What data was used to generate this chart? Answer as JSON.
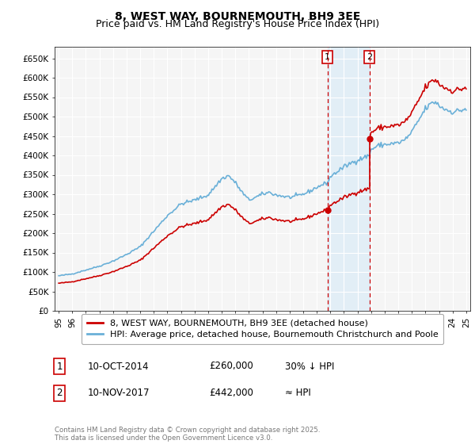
{
  "title": "8, WEST WAY, BOURNEMOUTH, BH9 3EE",
  "subtitle": "Price paid vs. HM Land Registry's House Price Index (HPI)",
  "ylim": [
    0,
    680000
  ],
  "yticks": [
    0,
    50000,
    100000,
    150000,
    200000,
    250000,
    300000,
    350000,
    400000,
    450000,
    500000,
    550000,
    600000,
    650000
  ],
  "ytick_labels": [
    "£0",
    "£50K",
    "£100K",
    "£150K",
    "£200K",
    "£250K",
    "£300K",
    "£350K",
    "£400K",
    "£450K",
    "£500K",
    "£550K",
    "£600K",
    "£650K"
  ],
  "hpi_color": "#6ab0d8",
  "price_color": "#cc0000",
  "vline_color": "#cc0000",
  "shade_color": "#d6eaf8",
  "sale1_date_num": 2014.79,
  "sale1_price": 260000,
  "sale1_label": "1",
  "sale2_date_num": 2017.87,
  "sale2_price": 442000,
  "sale2_label": "2",
  "legend_line1": "8, WEST WAY, BOURNEMOUTH, BH9 3EE (detached house)",
  "legend_line2": "HPI: Average price, detached house, Bournemouth Christchurch and Poole",
  "table_row1": [
    "1",
    "10-OCT-2014",
    "£260,000",
    "30% ↓ HPI"
  ],
  "table_row2": [
    "2",
    "10-NOV-2017",
    "£442,000",
    "≈ HPI"
  ],
  "footer": "Contains HM Land Registry data © Crown copyright and database right 2025.\nThis data is licensed under the Open Government Licence v3.0.",
  "bg_color": "#ffffff",
  "plot_bg_color": "#f5f5f5",
  "grid_color": "#ffffff",
  "title_fontsize": 10,
  "subtitle_fontsize": 9,
  "tick_fontsize": 7.5,
  "legend_fontsize": 8
}
